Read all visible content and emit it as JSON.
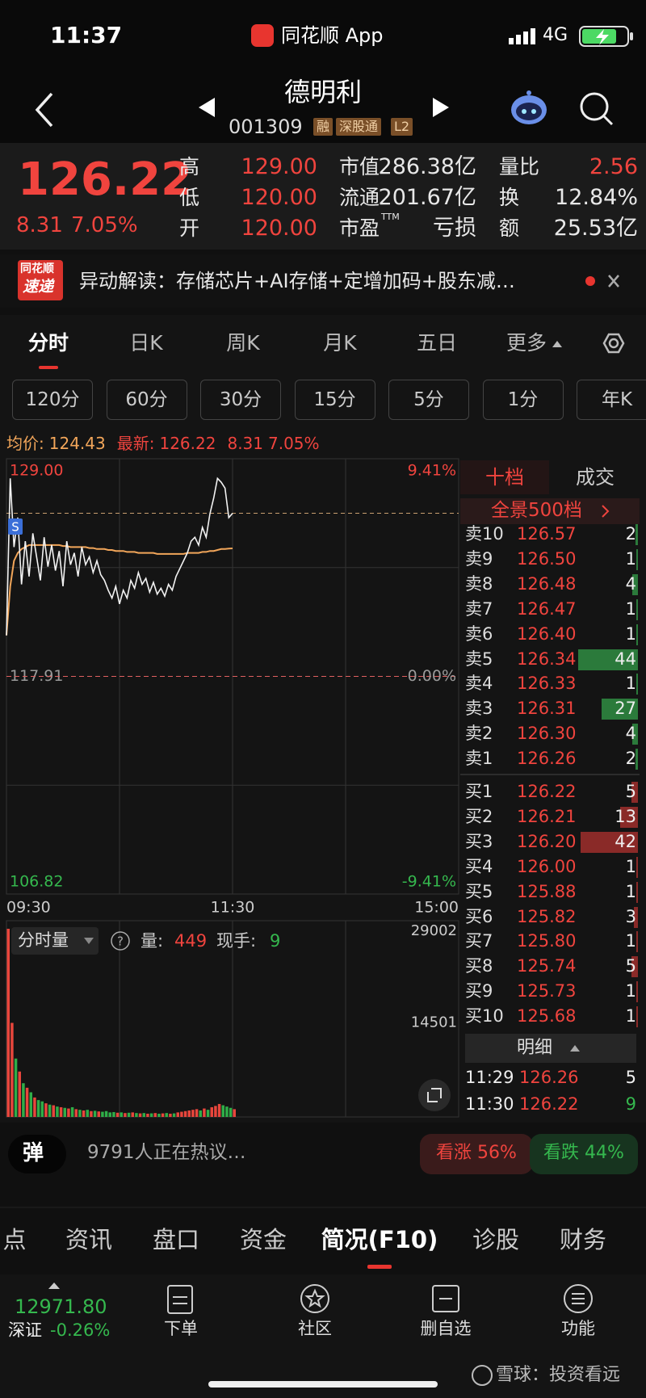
{
  "status": {
    "time": "11:37",
    "app": "同花顺 App",
    "network": "4G"
  },
  "header": {
    "name": "德明利",
    "code": "001309",
    "tags": [
      "融",
      "深股通",
      "L2"
    ]
  },
  "quote": {
    "price": "126.22",
    "change": "8.31",
    "pct": "7.05%",
    "cols": [
      [
        {
          "label": "高",
          "value": "129.00"
        },
        {
          "label": "低",
          "value": "120.00"
        },
        {
          "label": "开",
          "value": "120.00"
        }
      ],
      [
        {
          "label": "市值",
          "value": "286.38亿"
        },
        {
          "label": "流通",
          "value": "201.67亿"
        },
        {
          "label": "市盈",
          "sup": "TTM",
          "value": "亏损"
        }
      ],
      [
        {
          "label": "量比",
          "value": "2.56"
        },
        {
          "label": "换",
          "value": "12.84%"
        },
        {
          "label": "额",
          "value": "25.53亿"
        }
      ]
    ]
  },
  "news": {
    "logo": [
      "同花顺",
      "速递"
    ],
    "text": "异动解读：存储芯片+AI存储+定增加码+股东减…"
  },
  "tabs": [
    "分时",
    "日K",
    "周K",
    "月K",
    "五日",
    "更多"
  ],
  "periods": [
    "120分",
    "60分",
    "30分",
    "15分",
    "5分",
    "1分",
    "年K"
  ],
  "info": {
    "avg_label": "均价:",
    "avg": "124.43",
    "last_label": "最新:",
    "last": "126.22",
    "change": "8.31",
    "pct": "7.05%"
  },
  "intraday": {
    "signal": "S",
    "xlim": [
      0,
      240
    ],
    "xticks": [
      {
        "value": 0,
        "label": "09:30"
      },
      {
        "value": 120,
        "label": "11:30"
      },
      {
        "value": 240,
        "label": "15:00"
      }
    ],
    "ylim": [
      106.82,
      129.0
    ],
    "yticks": [
      {
        "value": 129.0,
        "label": "129.00"
      },
      {
        "value": 117.91,
        "label": "117.91"
      },
      {
        "value": 106.82,
        "label": "106.82"
      }
    ],
    "y2lim": [
      -9.41,
      9.41
    ],
    "y2ticks": [
      {
        "value": 9.41,
        "label": "9.41%"
      },
      {
        "value": 0,
        "label": "0.00%"
      },
      {
        "value": -9.41,
        "label": "-9.41%"
      }
    ],
    "x": [
      0,
      2,
      4,
      6,
      8,
      10,
      12,
      14,
      16,
      18,
      20,
      22,
      24,
      26,
      28,
      30,
      32,
      34,
      36,
      38,
      40,
      42,
      44,
      46,
      48,
      50,
      52,
      54,
      56,
      58,
      60,
      62,
      64,
      66,
      68,
      70,
      72,
      74,
      76,
      78,
      80,
      82,
      84,
      86,
      88,
      90,
      92,
      94,
      96,
      98,
      100,
      102,
      104,
      106,
      108,
      110,
      112,
      114,
      116,
      118,
      120
    ],
    "price": [
      120.0,
      128.0,
      124.5,
      126.0,
      122.6,
      124.8,
      123.0,
      125.2,
      124.0,
      122.8,
      125.0,
      123.5,
      124.6,
      123.3,
      124.3,
      122.5,
      124.8,
      123.6,
      124.2,
      123.0,
      124.5,
      123.6,
      124.0,
      123.2,
      123.8,
      123.1,
      122.8,
      122.3,
      121.9,
      122.5,
      121.6,
      122.3,
      121.9,
      122.8,
      122.4,
      123.2,
      122.6,
      122.9,
      122.2,
      122.7,
      122.1,
      122.4,
      122.0,
      122.6,
      122.3,
      123.0,
      123.4,
      123.8,
      124.2,
      124.8,
      125.0,
      124.6,
      125.5,
      125.0,
      126.2,
      127.0,
      128.0,
      127.8,
      127.5,
      126.0,
      126.22
    ],
    "avg": [
      120.0,
      122.5,
      123.8,
      124.2,
      124.4,
      124.5,
      124.6,
      124.6,
      124.6,
      124.6,
      124.6,
      124.6,
      124.6,
      124.6,
      124.6,
      124.55,
      124.55,
      124.5,
      124.5,
      124.5,
      124.5,
      124.5,
      124.45,
      124.45,
      124.4,
      124.4,
      124.4,
      124.35,
      124.35,
      124.3,
      124.3,
      124.3,
      124.25,
      124.25,
      124.25,
      124.2,
      124.2,
      124.2,
      124.2,
      124.2,
      124.15,
      124.15,
      124.15,
      124.15,
      124.15,
      124.15,
      124.15,
      124.15,
      124.2,
      124.2,
      124.2,
      124.2,
      124.25,
      124.25,
      124.3,
      124.3,
      124.35,
      124.4,
      124.4,
      124.42,
      124.43
    ]
  },
  "volume": {
    "title": "分时量",
    "qty_label": "量:",
    "qty": "449",
    "hand_label": "现手:",
    "hand": "9",
    "ylim": [
      0,
      29002
    ],
    "yticks": [
      29002,
      14501
    ],
    "values": [
      29000,
      14500,
      9000,
      7000,
      5200,
      4500,
      3800,
      3000,
      2600,
      2400,
      2100,
      1900,
      1800,
      1600,
      1500,
      1400,
      1300,
      1500,
      1200,
      1100,
      1000,
      1100,
      900,
      950,
      850,
      800,
      900,
      700,
      750,
      650,
      700,
      600,
      650,
      700,
      600,
      550,
      600,
      500,
      550,
      600,
      500,
      550,
      600,
      500,
      550,
      700,
      800,
      900,
      1000,
      1100,
      1200,
      1000,
      1300,
      1100,
      1500,
      1700,
      2000,
      1800,
      1600,
      1400,
      1200
    ]
  },
  "orderbook": {
    "tabs": [
      "十档",
      "成交"
    ],
    "panorama": "全景500档",
    "asks": [
      {
        "label": "卖10",
        "price": "126.57",
        "vol": 2
      },
      {
        "label": "卖9",
        "price": "126.50",
        "vol": 1
      },
      {
        "label": "卖8",
        "price": "126.48",
        "vol": 4
      },
      {
        "label": "卖7",
        "price": "126.47",
        "vol": 1
      },
      {
        "label": "卖6",
        "price": "126.40",
        "vol": 1
      },
      {
        "label": "卖5",
        "price": "126.34",
        "vol": 44
      },
      {
        "label": "卖4",
        "price": "126.33",
        "vol": 1
      },
      {
        "label": "卖3",
        "price": "126.31",
        "vol": 27
      },
      {
        "label": "卖2",
        "price": "126.30",
        "vol": 4
      },
      {
        "label": "卖1",
        "price": "126.26",
        "vol": 2
      }
    ],
    "bids": [
      {
        "label": "买1",
        "price": "126.22",
        "vol": 5
      },
      {
        "label": "买2",
        "price": "126.21",
        "vol": 13
      },
      {
        "label": "买3",
        "price": "126.20",
        "vol": 42
      },
      {
        "label": "买4",
        "price": "126.00",
        "vol": 1
      },
      {
        "label": "买5",
        "price": "125.88",
        "vol": 1
      },
      {
        "label": "买6",
        "price": "125.82",
        "vol": 3
      },
      {
        "label": "买7",
        "price": "125.80",
        "vol": 1
      },
      {
        "label": "买8",
        "price": "125.74",
        "vol": 5
      },
      {
        "label": "买9",
        "price": "125.73",
        "vol": 1
      },
      {
        "label": "买10",
        "price": "125.68",
        "vol": 1
      }
    ]
  },
  "detail": {
    "title": "明细",
    "trades": [
      {
        "time": "11:29",
        "price": "126.26",
        "vol": "5"
      },
      {
        "time": "11:30",
        "price": "126.22",
        "vol": "9"
      }
    ]
  },
  "discussion": {
    "badge": "弹",
    "text": "9791人正在热议…",
    "bull": "看涨 56%",
    "bear": "看跌 44%"
  },
  "bottom_tabs": [
    "点",
    "资讯",
    "盘口",
    "资金",
    "简况(F10)",
    "诊股",
    "财务"
  ],
  "index": {
    "value": "12971.80",
    "name": "深证",
    "pct": "-0.26%"
  },
  "toolbar": [
    "下单",
    "社区",
    "删自选",
    "功能"
  ],
  "watermark": "雪球：投资看远"
}
